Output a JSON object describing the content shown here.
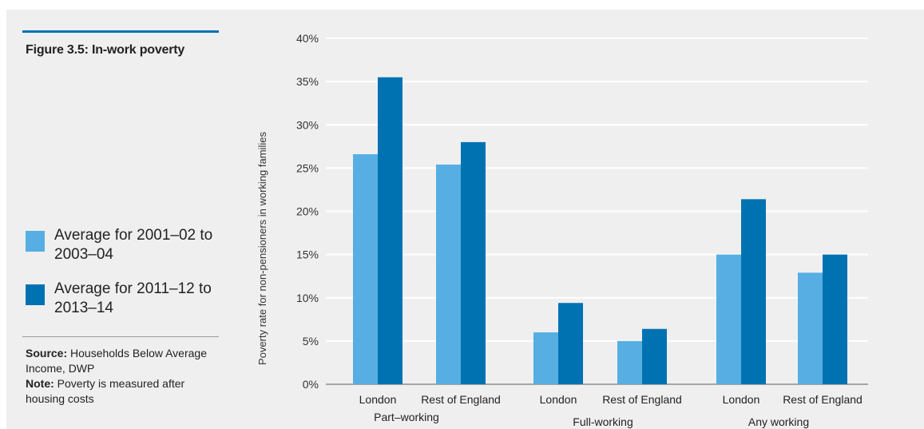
{
  "figure": {
    "title": "Figure 3.5: In-work poverty",
    "legend": [
      {
        "label": "Average for 2001–02 to 2003–04",
        "color": "#56aee2"
      },
      {
        "label": "Average for 2011–12 to 2013–14",
        "color": "#0072b2"
      }
    ],
    "source_label": "Source:",
    "source_text": "Households Below Average Income, DWP",
    "note_label": "Note:",
    "note_text": "Poverty is measured after housing costs"
  },
  "chart_data": {
    "type": "bar",
    "title": "",
    "xlabel": "",
    "ylabel": "Poverty rate for non-pensioners in working families",
    "ylim": [
      0,
      40
    ],
    "yticks": [
      "0%",
      "5%",
      "10%",
      "15%",
      "20%",
      "25%",
      "30%",
      "35%",
      "40%"
    ],
    "grid": true,
    "groups": [
      "Part–working",
      "Full-working",
      "Any working"
    ],
    "categories": [
      "London",
      "Rest of England",
      "London",
      "Rest of England",
      "London",
      "Rest of England"
    ],
    "series": [
      {
        "name": "Average for 2001–02 to 2003–04",
        "color": "#56aee2",
        "values": [
          26.6,
          25.4,
          6.0,
          5.0,
          15.0,
          12.9
        ]
      },
      {
        "name": "Average for 2011–12 to 2013–14",
        "color": "#0072b2",
        "values": [
          35.5,
          28.0,
          9.4,
          6.4,
          21.4,
          15.0
        ]
      }
    ]
  }
}
